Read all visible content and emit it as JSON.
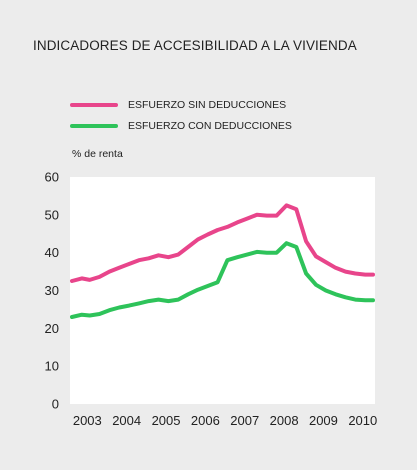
{
  "title": "INDICADORES DE ACCESIBILIDAD A LA VIVIENDA",
  "colors": {
    "background": "#ececec",
    "plot_background": "#ffffff",
    "series_1": "#e8458b",
    "series_2": "#2ec35a",
    "axis_text": "#222222"
  },
  "chart_data": {
    "type": "line",
    "title": "INDICADORES DE ACCESIBILIDAD A LA VIVIENDA",
    "xlabel": "",
    "ylabel": "% de renta",
    "xlim": [
      2002.6,
      2010.35
    ],
    "ylim": [
      0,
      60
    ],
    "x_ticks": [
      "2003",
      "2004",
      "2005",
      "2006",
      "2007",
      "2008",
      "2009",
      "2010"
    ],
    "y_ticks": [
      "0",
      "10",
      "20",
      "30",
      "40",
      "50",
      "60"
    ],
    "grid": false,
    "legend_position": "top-left",
    "series": [
      {
        "name": "ESFUERZO SIN DEDUCCIONES",
        "color": "#e8458b",
        "x": [
          2002.65,
          2002.9,
          2003.1,
          2003.35,
          2003.6,
          2003.85,
          2004.1,
          2004.35,
          2004.6,
          2004.85,
          2005.1,
          2005.35,
          2005.6,
          2005.85,
          2006.1,
          2006.35,
          2006.6,
          2006.85,
          2007.1,
          2007.35,
          2007.6,
          2007.85,
          2008.1,
          2008.35,
          2008.6,
          2008.85,
          2009.1,
          2009.35,
          2009.6,
          2009.85,
          2010.1,
          2010.3
        ],
        "values": [
          32.5,
          33.2,
          32.8,
          33.6,
          35.0,
          36.0,
          37.0,
          38.0,
          38.5,
          39.3,
          38.8,
          39.5,
          41.5,
          43.5,
          44.8,
          46.0,
          46.8,
          48.0,
          49.0,
          50.0,
          49.8,
          49.8,
          52.5,
          51.5,
          43.0,
          39.0,
          37.5,
          36.0,
          35.0,
          34.5,
          34.2,
          34.2
        ]
      },
      {
        "name": "ESFUERZO CON DEDUCCIONES",
        "color": "#2ec35a",
        "x": [
          2002.65,
          2002.9,
          2003.1,
          2003.35,
          2003.6,
          2003.85,
          2004.1,
          2004.35,
          2004.6,
          2004.85,
          2005.1,
          2005.35,
          2005.6,
          2005.85,
          2006.1,
          2006.35,
          2006.6,
          2006.85,
          2007.1,
          2007.35,
          2007.6,
          2007.85,
          2008.1,
          2008.35,
          2008.6,
          2008.85,
          2009.1,
          2009.35,
          2009.6,
          2009.85,
          2010.1,
          2010.3
        ],
        "values": [
          23.0,
          23.6,
          23.4,
          23.8,
          24.8,
          25.5,
          26.0,
          26.6,
          27.2,
          27.6,
          27.2,
          27.6,
          29.0,
          30.2,
          31.2,
          32.2,
          38.0,
          38.8,
          39.5,
          40.2,
          40.0,
          40.0,
          42.5,
          41.5,
          34.5,
          31.5,
          30.0,
          29.0,
          28.2,
          27.6,
          27.4,
          27.4
        ]
      }
    ]
  }
}
